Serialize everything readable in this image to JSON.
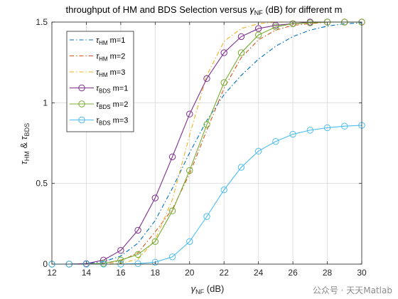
{
  "chart_data": {
    "type": "line",
    "title": {
      "pre": "throughput of HM and BDS Selection versus ",
      "sym": "γ",
      "sub": "NF",
      "post": " (dB) for different m"
    },
    "xlabel": {
      "sym": "γ",
      "sub": "NF",
      "post": " (dB)"
    },
    "ylabel": {
      "sym1": "τ",
      "sub1": "HM",
      "mid": " & ",
      "sym2": "τ",
      "sub2": "BDS"
    },
    "xlim": [
      12,
      30
    ],
    "ylim": [
      0,
      1.5
    ],
    "xticks": [
      "12",
      "14",
      "16",
      "18",
      "20",
      "22",
      "24",
      "26",
      "28",
      "30"
    ],
    "yticks": [
      "0",
      "0.5",
      "1",
      "1.5"
    ],
    "grid": true,
    "legend_position": "top-left",
    "x": [
      12,
      13,
      14,
      15,
      16,
      17,
      18,
      19,
      20,
      21,
      22,
      23,
      24,
      25,
      26,
      27,
      28,
      29,
      30
    ],
    "series": [
      {
        "name_sym": "τ",
        "name_sub": "HM",
        "name_post": " m=1",
        "color": "#0072BD",
        "dash": "dashdot",
        "marker": false,
        "values": [
          0,
          0,
          0.003,
          0.015,
          0.05,
          0.13,
          0.27,
          0.47,
          0.69,
          0.89,
          1.05,
          1.17,
          1.27,
          1.35,
          1.41,
          1.45,
          1.475,
          1.49,
          1.495
        ]
      },
      {
        "name_sym": "τ",
        "name_sub": "HM",
        "name_post": " m=2",
        "color": "#D95319",
        "dash": "dashdot",
        "marker": false,
        "values": [
          0,
          0,
          0,
          0.005,
          0.02,
          0.07,
          0.2,
          0.34,
          0.56,
          0.83,
          1.09,
          1.28,
          1.39,
          1.45,
          1.48,
          1.49,
          1.5,
          1.5,
          1.5
        ]
      },
      {
        "name_sym": "τ",
        "name_sub": "HM",
        "name_post": " m=3",
        "color": "#EDB120",
        "dash": "dashdot",
        "marker": false,
        "values": [
          0,
          0,
          0,
          0.001,
          0.005,
          0.03,
          0.15,
          0.4,
          0.8,
          1.17,
          1.38,
          1.46,
          1.49,
          1.5,
          1.5,
          1.5,
          1.5,
          1.5,
          1.5
        ]
      },
      {
        "name_sym": "τ",
        "name_sub": "BDS",
        "name_post": " m=1",
        "color": "#7E2F8E",
        "dash": "solid",
        "marker": true,
        "values": [
          0,
          0,
          0.003,
          0.025,
          0.085,
          0.21,
          0.41,
          0.665,
          0.93,
          1.15,
          1.31,
          1.41,
          1.46,
          1.48,
          1.49,
          1.5,
          1.5,
          1.5,
          1.5
        ]
      },
      {
        "name_sym": "τ",
        "name_sub": "BDS",
        "name_post": " m=2",
        "color": "#77AC30",
        "dash": "solid",
        "marker": true,
        "values": [
          0,
          0,
          0,
          0.005,
          0.025,
          0.06,
          0.14,
          0.33,
          0.58,
          0.865,
          1.125,
          1.31,
          1.42,
          1.47,
          1.49,
          1.495,
          1.5,
          1.5,
          1.5
        ]
      },
      {
        "name_sym": "τ",
        "name_sub": "BDS",
        "name_post": " m=3",
        "color": "#4DBEEE",
        "dash": "solid",
        "marker": true,
        "values": [
          0,
          0,
          0,
          0,
          0,
          0.003,
          0.012,
          0.045,
          0.14,
          0.295,
          0.46,
          0.6,
          0.7,
          0.76,
          0.805,
          0.83,
          0.845,
          0.855,
          0.86
        ]
      }
    ]
  },
  "watermark": "公众号 · 天天Matlab"
}
